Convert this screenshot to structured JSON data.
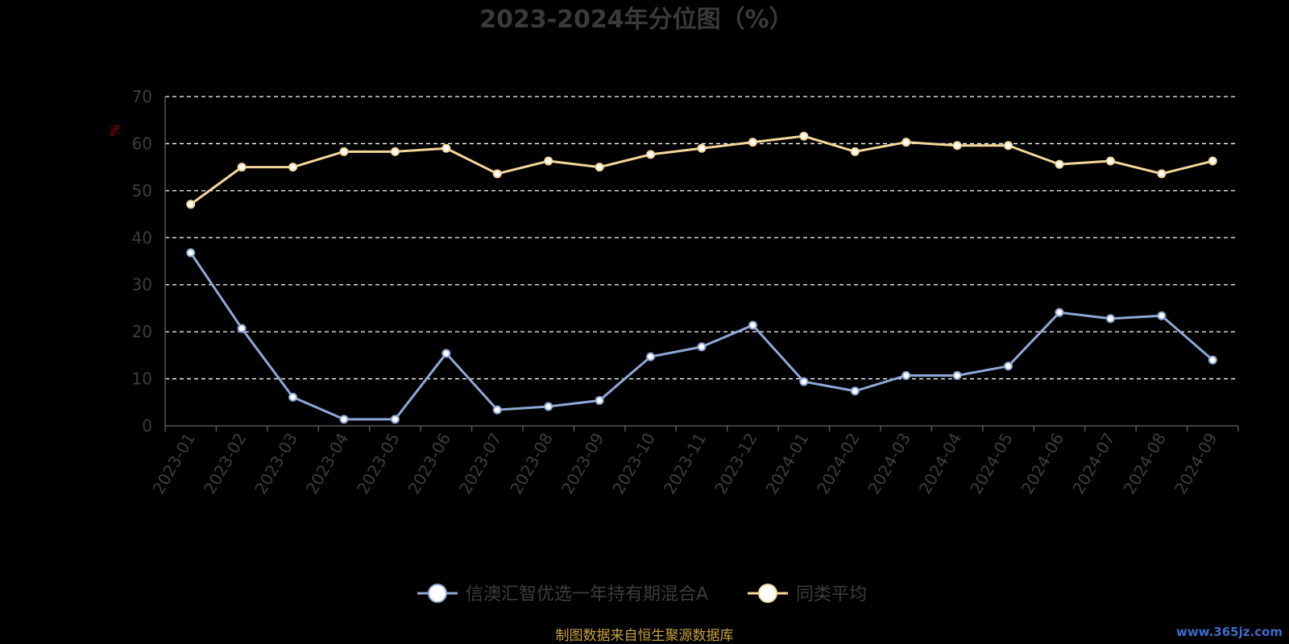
{
  "chart_data": {
    "type": "line",
    "title": "2023-2024年分位图（%）",
    "ylabel": "%",
    "xlabel": "",
    "ylim": [
      0,
      70
    ],
    "yticks": [
      "0",
      "10",
      "20",
      "30",
      "40",
      "50",
      "60",
      "70"
    ],
    "grid": true,
    "legend_position": "bottom-center",
    "categories": [
      "2023-01",
      "2023-02",
      "2023-03",
      "2023-04",
      "2023-05",
      "2023-06",
      "2023-07",
      "2023-08",
      "2023-09",
      "2023-10",
      "2023-11",
      "2023-12",
      "2024-01",
      "2024-02",
      "2024-03",
      "2024-04",
      "2024-05",
      "2024-06",
      "2024-07",
      "2024-08",
      "2024-09"
    ],
    "series": [
      {
        "name": "信澳汇智优选一年持有期混合A",
        "color": "#8fa8d8",
        "values": [
          36.8,
          20.7,
          6.1,
          1.4,
          1.4,
          15.4,
          3.4,
          4.1,
          5.4,
          14.7,
          16.8,
          21.4,
          9.4,
          7.4,
          10.7,
          10.7,
          12.7,
          24.1,
          22.8,
          23.4,
          14.0
        ]
      },
      {
        "name": "同类平均",
        "color": "#f5d79a",
        "values": [
          47.1,
          55.0,
          55.0,
          58.3,
          58.3,
          59.0,
          53.6,
          56.3,
          55.0,
          57.7,
          59.0,
          60.3,
          61.6,
          58.3,
          60.3,
          59.6,
          59.6,
          55.6,
          56.3,
          53.6,
          56.3
        ]
      }
    ]
  },
  "footer": {
    "source": "制图数据来自恒生聚源数据库",
    "watermark": "www.365jz.com"
  },
  "colors": {
    "background": "#000000",
    "grid": "#ffffff",
    "axis": "#555555",
    "text": "#3d3d3d",
    "source": "#c8a23c",
    "ylabel": "#b00000"
  }
}
